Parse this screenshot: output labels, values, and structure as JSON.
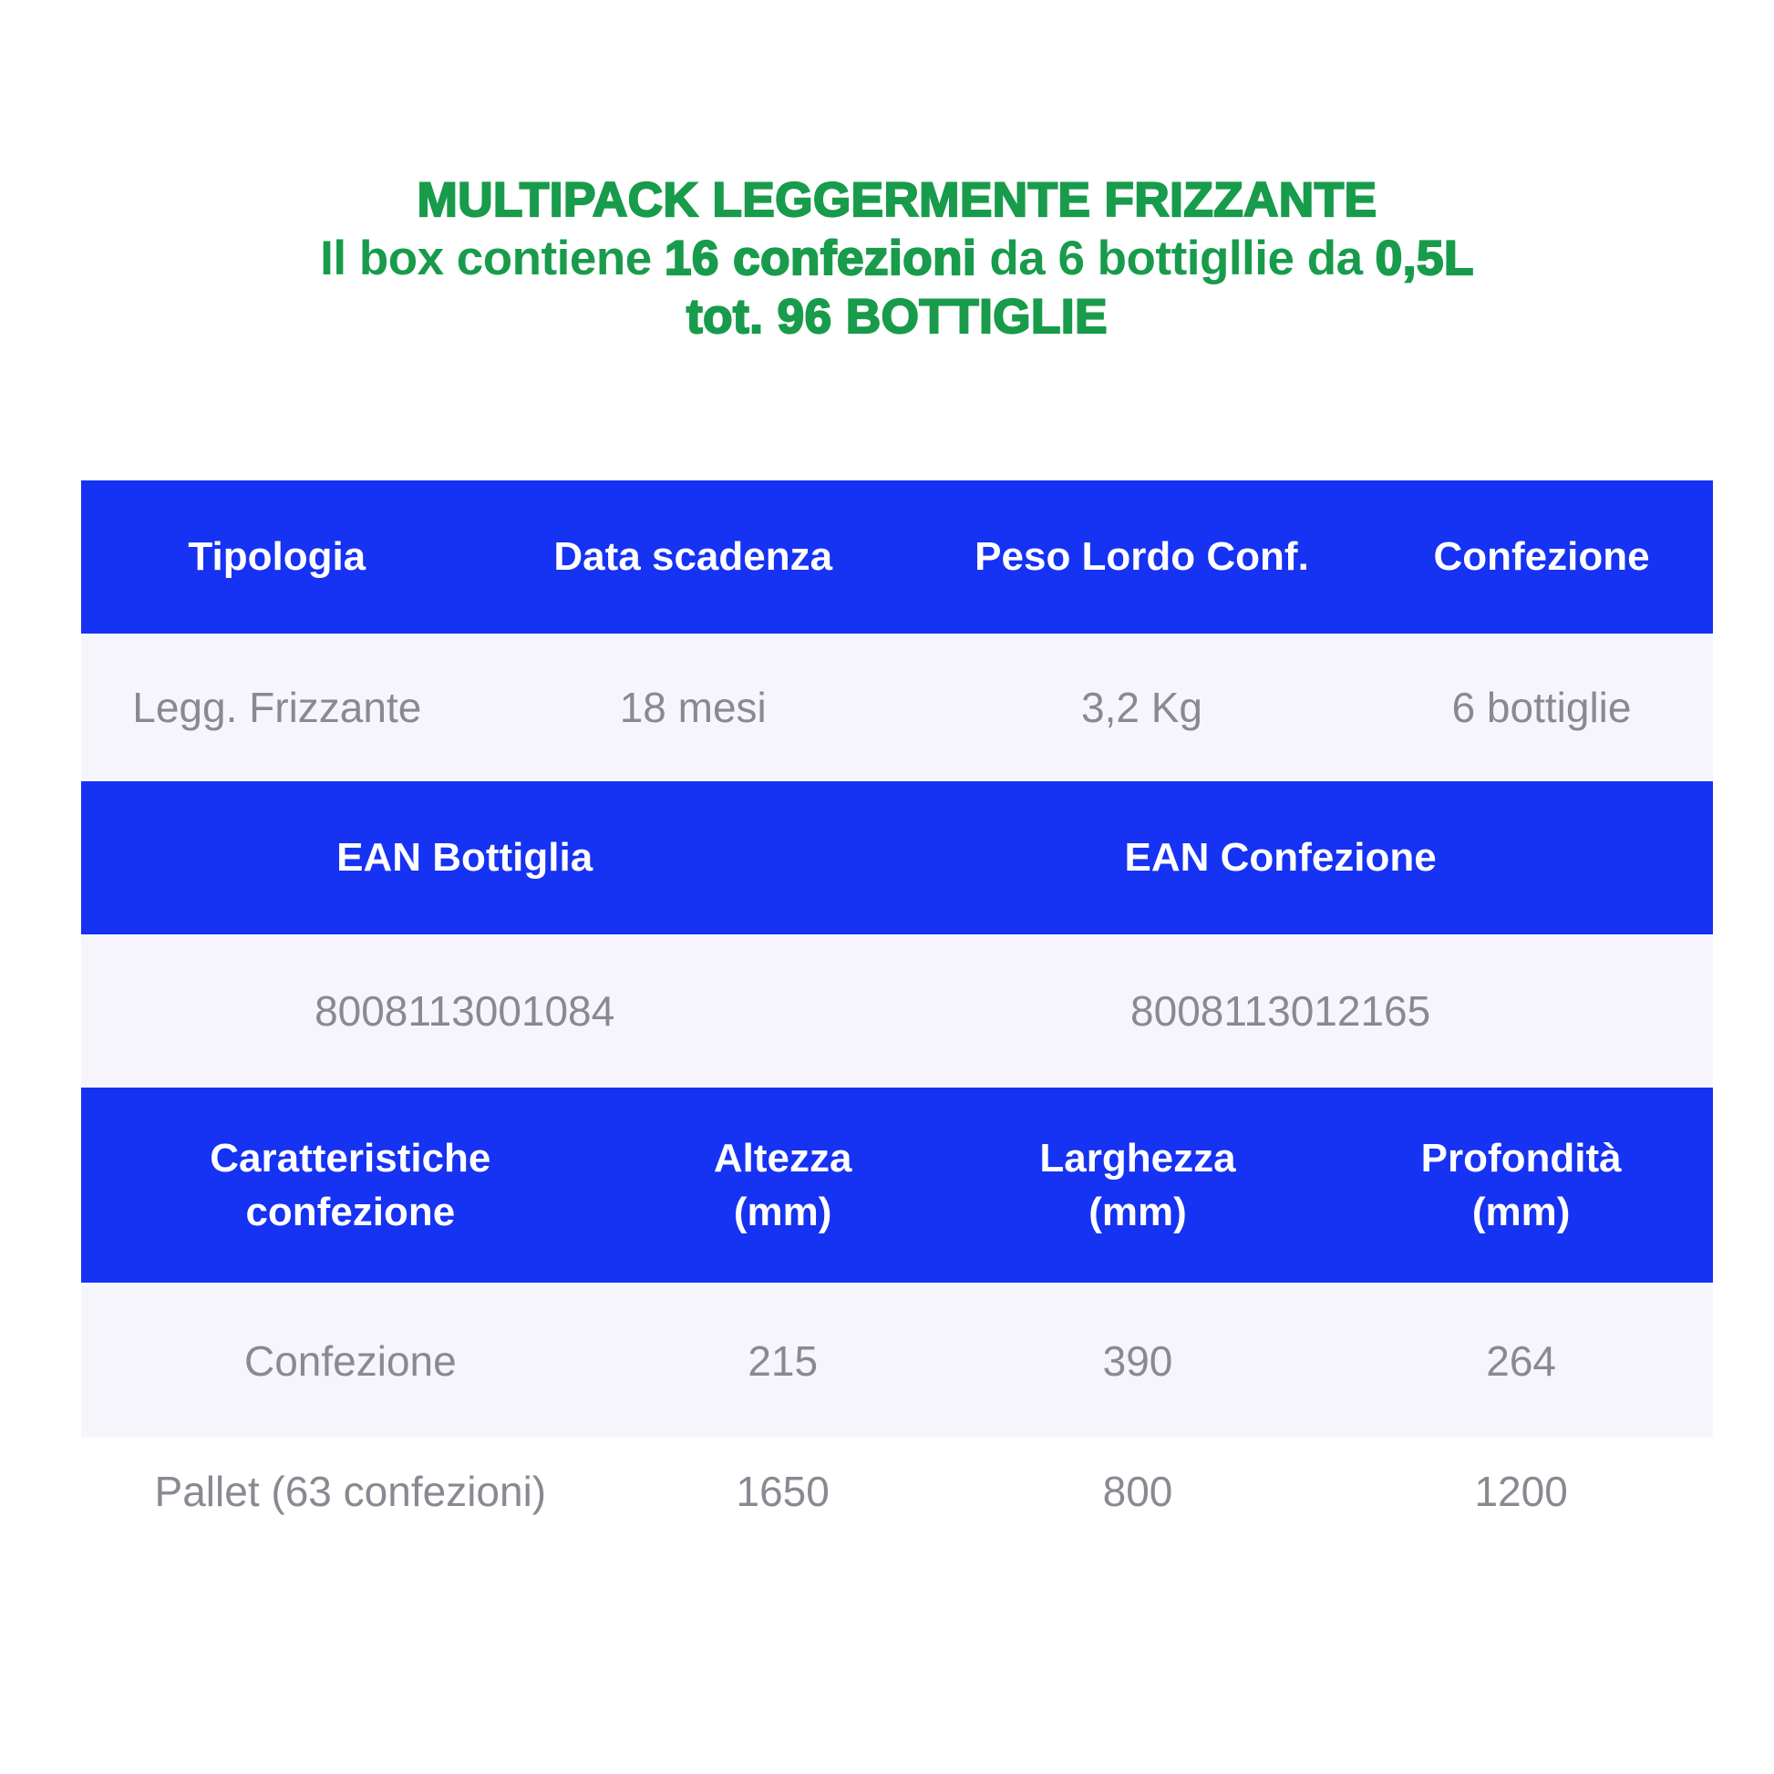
{
  "colors": {
    "accent_blue": "#1632f2",
    "title_green": "#189b4b",
    "row_bg": "#f6f5fb",
    "text_gray": "#8a8991"
  },
  "title": {
    "line1": "MULTIPACK LEGGERMENTE FRIZZANTE",
    "line2_part1": "Il box contiene ",
    "line2_bold1": "16 confezioni",
    "line2_part2": " da 6 bottigllie da ",
    "line2_bold2": "0,5L",
    "line3": "tot. 96 BOTTIGLIE"
  },
  "product_table": {
    "headers": [
      "Tipologia",
      "Data scadenza",
      "Peso Lordo Conf.",
      "Confezione"
    ],
    "values": [
      "Legg. Frizzante",
      "18 mesi",
      "3,2 Kg",
      "6 bottiglie"
    ]
  },
  "ean_table": {
    "headers": [
      "EAN Bottiglia",
      "EAN Confezione"
    ],
    "values": [
      "8008113001084",
      "8008113012165"
    ]
  },
  "dimensions_table": {
    "headers": [
      "Caratteristiche\nconfezione",
      "Altezza\n(mm)",
      "Larghezza\n(mm)",
      "Profondità\n(mm)"
    ],
    "rows": [
      [
        "Confezione",
        "215",
        "390",
        "264"
      ],
      [
        "Pallet (63 confezioni)",
        "1650",
        "800",
        "1200"
      ]
    ]
  }
}
